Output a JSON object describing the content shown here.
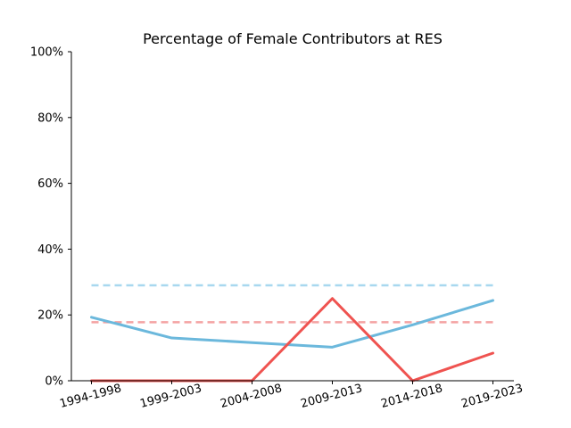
{
  "chart_data": {
    "type": "line",
    "title": "Percentage of Female Contributors at RES",
    "xlabel": "",
    "ylabel": "",
    "categories": [
      "1994-1998",
      "1999-2003",
      "2004-2008",
      "2009-2013",
      "2014-2018",
      "2019-2023"
    ],
    "ylim": [
      0,
      100
    ],
    "yticks": [
      0,
      20,
      40,
      60,
      80,
      100
    ],
    "ytick_labels": [
      "0%",
      "20%",
      "40%",
      "60%",
      "80%",
      "100%"
    ],
    "grid": false,
    "legend": "none",
    "series": [
      {
        "color": "#6bb8dc",
        "style": "solid",
        "values": [
          19.3,
          13.0,
          11.6,
          10.2,
          17.0,
          24.4
        ]
      },
      {
        "color": "#ef5350",
        "style": "solid",
        "values": [
          0,
          0,
          0,
          25.0,
          0,
          8.4
        ]
      }
    ],
    "reference_lines": [
      {
        "color": "#a8d8ef",
        "style": "dashed",
        "value": 29.0
      },
      {
        "color": "#f4a3a3",
        "style": "dashed",
        "value": 17.8
      }
    ]
  }
}
